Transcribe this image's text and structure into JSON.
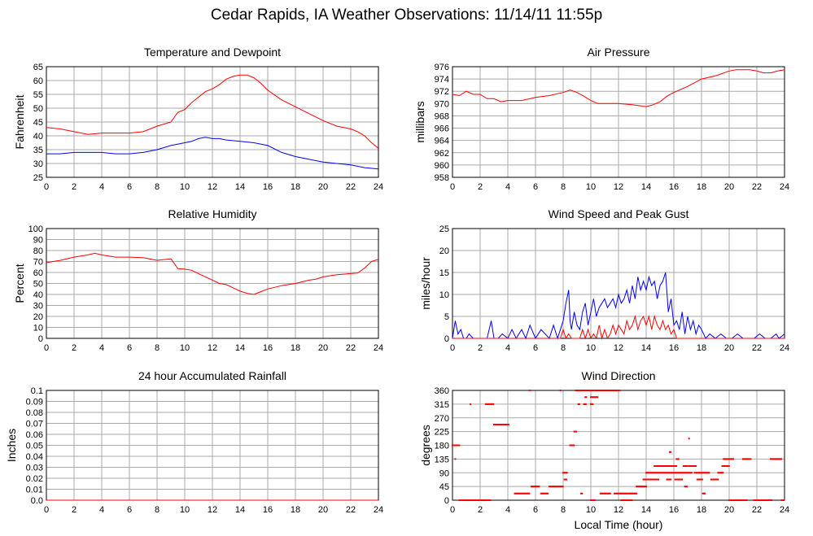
{
  "title": "Cedar Rapids, IA Weather Observations: 11/14/11 11:55p",
  "colors": {
    "red": "#ff0000",
    "blue": "#0000ff",
    "grid": "#aaaaaa"
  },
  "chart_data": [
    {
      "id": "temp",
      "type": "line",
      "title": "Temperature and Dewpoint",
      "xlabel": "",
      "ylabel": "Fahrenheit",
      "xlim": [
        0,
        24
      ],
      "ylim": [
        25,
        65
      ],
      "yticks": [
        25,
        30,
        35,
        40,
        45,
        50,
        55,
        60,
        65
      ],
      "xticks": [
        0,
        2,
        4,
        6,
        8,
        10,
        12,
        14,
        16,
        18,
        20,
        22,
        24
      ],
      "series": [
        {
          "color": "#ff0000",
          "x": [
            0,
            1,
            2,
            3,
            4,
            5,
            6,
            7,
            8,
            9,
            9.5,
            10,
            10.5,
            11,
            11.5,
            12,
            12.5,
            13,
            13.5,
            14,
            14.5,
            15,
            15.5,
            16,
            17,
            18,
            19,
            20,
            21,
            22,
            22.5,
            23,
            23.5,
            24
          ],
          "y": [
            43,
            42.5,
            41.5,
            40.5,
            41,
            41,
            41,
            41.5,
            43.5,
            45,
            48.5,
            49.5,
            52,
            54,
            56,
            57,
            58.5,
            60.5,
            61.5,
            62,
            62,
            61,
            59,
            56.5,
            53,
            50.5,
            48,
            45.5,
            43.5,
            42.5,
            41.5,
            40,
            37.5,
            35.5
          ]
        },
        {
          "color": "#0000ff",
          "x": [
            0,
            1,
            2,
            3,
            4,
            5,
            6,
            7,
            8,
            9,
            10,
            10.5,
            11,
            11.5,
            12,
            12.5,
            13,
            14,
            15,
            16,
            17,
            18,
            19,
            20,
            21,
            22,
            23,
            24
          ],
          "y": [
            33.5,
            33.5,
            34,
            34,
            34,
            33.5,
            33.5,
            34,
            35,
            36.5,
            37.5,
            38,
            39,
            39.5,
            39,
            39,
            38.5,
            38,
            37.5,
            36.5,
            34,
            32.5,
            31.5,
            30.5,
            30,
            29.5,
            28.5,
            28
          ]
        }
      ]
    },
    {
      "id": "pressure",
      "type": "line",
      "title": "Air Pressure",
      "xlabel": "",
      "ylabel": "millibars",
      "xlim": [
        0,
        24
      ],
      "ylim": [
        958,
        976
      ],
      "yticks": [
        958,
        960,
        962,
        964,
        966,
        968,
        970,
        972,
        974,
        976
      ],
      "xticks": [
        0,
        2,
        4,
        6,
        8,
        10,
        12,
        14,
        16,
        18,
        20,
        22,
        24
      ],
      "series": [
        {
          "color": "#ff0000",
          "x": [
            0,
            0.5,
            1,
            1.5,
            2,
            2.5,
            3,
            3.5,
            4,
            5,
            6,
            7,
            8,
            8.5,
            9,
            9.5,
            10,
            10.5,
            11,
            12,
            13,
            14,
            14.5,
            15,
            15.5,
            16,
            17,
            18,
            19,
            20,
            20.5,
            21,
            21.5,
            22,
            22.5,
            23,
            23.5,
            24
          ],
          "y": [
            971.5,
            971.3,
            972,
            971.5,
            971.5,
            970.8,
            970.8,
            970.3,
            970.5,
            970.5,
            971,
            971.3,
            971.8,
            972.2,
            971.8,
            971.2,
            970.5,
            970,
            970,
            970,
            969.8,
            969.5,
            969.8,
            970.3,
            971.2,
            971.8,
            972.8,
            974,
            974.5,
            975.3,
            975.5,
            975.5,
            975.5,
            975.3,
            975,
            975,
            975.3,
            975.5
          ]
        }
      ]
    },
    {
      "id": "humidity",
      "type": "line",
      "title": "Relative Humidity",
      "xlabel": "",
      "ylabel": "Percent",
      "xlim": [
        0,
        24
      ],
      "ylim": [
        0,
        100
      ],
      "yticks": [
        0,
        10,
        20,
        30,
        40,
        50,
        60,
        70,
        80,
        90,
        100
      ],
      "xticks": [
        0,
        2,
        4,
        6,
        8,
        10,
        12,
        14,
        16,
        18,
        20,
        22,
        24
      ],
      "series": [
        {
          "color": "#ff0000",
          "x": [
            0,
            1,
            2,
            3,
            3.5,
            4,
            5,
            6,
            7,
            8,
            9,
            9.5,
            10,
            10.5,
            11,
            11.5,
            12,
            12.5,
            13,
            13.5,
            14,
            14.5,
            15,
            15.5,
            16,
            17,
            18,
            19,
            19.5,
            20,
            21,
            22,
            22.5,
            23,
            23.5,
            24
          ],
          "y": [
            69,
            71,
            74,
            76,
            77.5,
            76,
            74,
            74,
            73.5,
            71,
            72.5,
            63.5,
            63,
            62,
            59,
            56,
            53,
            50,
            49,
            46,
            43,
            41,
            40,
            42.5,
            45,
            48,
            50,
            53,
            54,
            56,
            58,
            59,
            59.5,
            64,
            70,
            72
          ]
        }
      ]
    },
    {
      "id": "wind",
      "type": "line",
      "title": "Wind Speed and Peak Gust",
      "xlabel": "",
      "ylabel": "miles/hour",
      "xlim": [
        0,
        24
      ],
      "ylim": [
        0,
        25
      ],
      "yticks": [
        0,
        5,
        10,
        15,
        20,
        25
      ],
      "xticks": [
        0,
        2,
        4,
        6,
        8,
        10,
        12,
        14,
        16,
        18,
        20,
        22,
        24
      ],
      "series": [
        {
          "color": "#0000ff",
          "x": [
            0,
            0.2,
            0.4,
            0.6,
            0.8,
            1.0,
            1.2,
            1.5,
            2.0,
            2.5,
            2.8,
            3.0,
            3.3,
            3.6,
            4.0,
            4.3,
            4.6,
            5.0,
            5.3,
            5.6,
            6.0,
            6.4,
            7.0,
            7.3,
            7.6,
            7.8,
            8.0,
            8.2,
            8.4,
            8.5,
            8.6,
            8.8,
            9.0,
            9.2,
            9.4,
            9.6,
            9.8,
            10.0,
            10.2,
            10.4,
            10.6,
            10.8,
            11.0,
            11.2,
            11.4,
            11.6,
            11.8,
            12.0,
            12.2,
            12.4,
            12.6,
            12.8,
            13.0,
            13.2,
            13.4,
            13.6,
            13.8,
            14.0,
            14.2,
            14.4,
            14.6,
            14.8,
            15.0,
            15.2,
            15.4,
            15.6,
            15.8,
            16.0,
            16.2,
            16.4,
            16.6,
            16.8,
            17.0,
            17.2,
            17.4,
            17.6,
            17.8,
            18.0,
            18.3,
            18.6,
            19.0,
            19.4,
            19.8,
            20.2,
            20.6,
            21.0,
            21.4,
            21.8,
            22.2,
            22.6,
            23.0,
            23.4,
            23.6,
            24.0
          ],
          "y": [
            0,
            4,
            1,
            2,
            0,
            0,
            1,
            0,
            0,
            0,
            4,
            0,
            0,
            1,
            0,
            2,
            0,
            2,
            0,
            3,
            0,
            2,
            0,
            3,
            0,
            2,
            4,
            8,
            11,
            4,
            2,
            6,
            3,
            2,
            6,
            8,
            3,
            6,
            9,
            5,
            7,
            8,
            9,
            7,
            8,
            9,
            7,
            10,
            8,
            9,
            11,
            8,
            12,
            9,
            14,
            11,
            13,
            11,
            14,
            12,
            13,
            9,
            12,
            13,
            15,
            6,
            9,
            3,
            4,
            2,
            6,
            1,
            5,
            2,
            4,
            1,
            3,
            2,
            0,
            1,
            0,
            1,
            0,
            0,
            1,
            0,
            0,
            0,
            1,
            0,
            0,
            1,
            0,
            1
          ]
        },
        {
          "color": "#ff0000",
          "x": [
            0,
            7.8,
            8.0,
            8.2,
            8.4,
            8.6,
            8.8,
            9.0,
            9.2,
            9.4,
            9.6,
            9.8,
            10.0,
            10.2,
            10.4,
            10.6,
            10.8,
            11.0,
            11.2,
            11.4,
            11.6,
            11.8,
            12.0,
            12.2,
            12.4,
            12.6,
            12.8,
            13.0,
            13.2,
            13.4,
            13.6,
            13.8,
            14.0,
            14.2,
            14.4,
            14.6,
            14.8,
            15.0,
            15.2,
            15.4,
            15.6,
            15.8,
            16.0,
            16.2,
            24
          ],
          "y": [
            0,
            0,
            2,
            0,
            1,
            0,
            0,
            0,
            0,
            2,
            0,
            2,
            0,
            1,
            0,
            3,
            0,
            2,
            0,
            1,
            3,
            1,
            3,
            2,
            1,
            4,
            2,
            3,
            5,
            2,
            4,
            5,
            3,
            5,
            2,
            5,
            3,
            2,
            4,
            2,
            3,
            1,
            2,
            0,
            0
          ]
        }
      ]
    },
    {
      "id": "rain",
      "type": "line",
      "title": "24 hour Accumulated Rainfall",
      "xlabel": "",
      "ylabel": "Inches",
      "xlim": [
        0,
        24
      ],
      "ylim": [
        0,
        0.1
      ],
      "yticks": [
        "0.0",
        "0.01",
        "0.02",
        "0.03",
        "0.04",
        "0.05",
        "0.06",
        "0.07",
        "0.08",
        "0.09",
        "0.1"
      ],
      "xticks": [
        0,
        2,
        4,
        6,
        8,
        10,
        12,
        14,
        16,
        18,
        20,
        22,
        24
      ],
      "series": [
        {
          "color": "#ff0000",
          "x": [
            0,
            24
          ],
          "y": [
            0,
            0
          ]
        }
      ]
    },
    {
      "id": "direction",
      "type": "scatter",
      "title": "Wind Direction",
      "xlabel": "Local Time (hour)",
      "ylabel": "degrees",
      "xlim": [
        0,
        24
      ],
      "ylim": [
        0,
        360
      ],
      "yticks": [
        0,
        45,
        90,
        135,
        180,
        225,
        270,
        315,
        360
      ],
      "xticks": [
        0,
        2,
        4,
        6,
        8,
        10,
        12,
        14,
        16,
        18,
        20,
        22,
        24
      ],
      "series": [
        {
          "color": "#ff0000",
          "runs": [
            [
              0.0,
              0.5,
              180
            ],
            [
              0.2,
              0.2,
              135
            ],
            [
              0.5,
              2.8,
              0
            ],
            [
              1.3,
              1.3,
              315
            ],
            [
              2.4,
              3.0,
              315
            ],
            [
              3.0,
              4.1,
              248
            ],
            [
              4.5,
              5.6,
              22
            ],
            [
              5.6,
              5.6,
              360
            ],
            [
              5.7,
              6.3,
              45
            ],
            [
              6.4,
              6.9,
              22
            ],
            [
              7.0,
              8.0,
              45
            ],
            [
              7.8,
              7.8,
              360
            ],
            [
              8.0,
              8.3,
              90
            ],
            [
              8.1,
              8.3,
              68
            ],
            [
              8.5,
              8.8,
              180
            ],
            [
              8.8,
              9.0,
              225
            ],
            [
              8.9,
              9.6,
              360
            ],
            [
              9.1,
              9.2,
              315
            ],
            [
              9.3,
              9.4,
              22
            ],
            [
              9.5,
              9.7,
              315
            ],
            [
              9.6,
              9.7,
              338
            ],
            [
              9.7,
              12.1,
              360
            ],
            [
              10.0,
              10.5,
              338
            ],
            [
              10.0,
              10.2,
              315
            ],
            [
              10.0,
              10.3,
              0
            ],
            [
              10.7,
              11.4,
              22
            ],
            [
              11.7,
              11.9,
              22
            ],
            [
              11.9,
              13.3,
              22
            ],
            [
              12.2,
              13.0,
              0
            ],
            [
              13.3,
              14.0,
              45
            ],
            [
              13.8,
              14.6,
              68
            ],
            [
              14.0,
              17.3,
              90
            ],
            [
              14.4,
              14.9,
              68
            ],
            [
              14.6,
              15.1,
              112
            ],
            [
              15.2,
              16.2,
              112
            ],
            [
              15.5,
              15.8,
              68
            ],
            [
              15.7,
              15.8,
              158
            ],
            [
              16.1,
              16.6,
              68
            ],
            [
              16.2,
              16.4,
              135
            ],
            [
              16.7,
              17.0,
              112
            ],
            [
              16.8,
              17.0,
              45
            ],
            [
              17.1,
              17.6,
              112
            ],
            [
              17.1,
              17.1,
              202
            ],
            [
              17.5,
              18.6,
              90
            ],
            [
              17.7,
              18.1,
              68
            ],
            [
              18.1,
              18.3,
              22
            ],
            [
              18.7,
              19.2,
              68
            ],
            [
              19.2,
              19.6,
              90
            ],
            [
              19.5,
              20.0,
              112
            ],
            [
              19.6,
              20.3,
              135
            ],
            [
              20.0,
              21.3,
              0
            ],
            [
              21.0,
              21.6,
              135
            ],
            [
              21.8,
              23.1,
              0
            ],
            [
              23.0,
              23.8,
              135
            ],
            [
              23.8,
              24.0,
              0
            ]
          ]
        }
      ]
    }
  ]
}
